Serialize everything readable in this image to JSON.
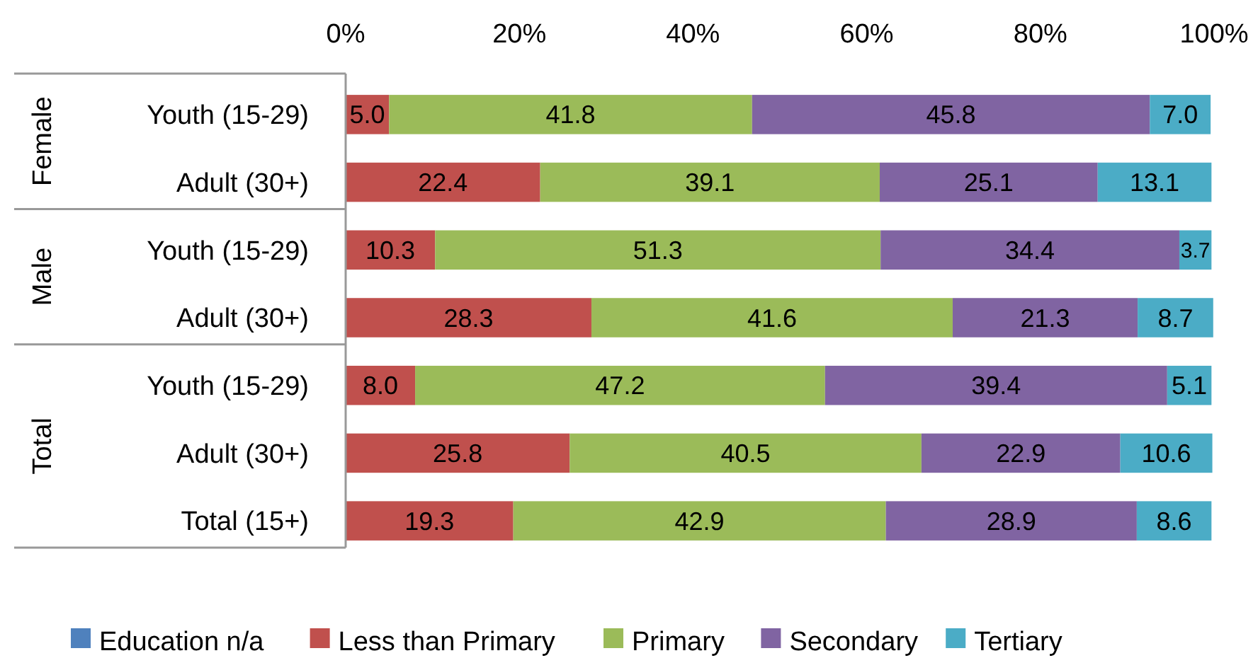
{
  "chart_data": {
    "type": "bar",
    "orientation": "horizontal",
    "stacked": true,
    "categories": [
      "Youth (15-29)",
      "Adult (30+)",
      "Youth (15-29)",
      "Adult (30+)",
      "Youth (15-29)",
      "Adult (30+)",
      "Total (15+)"
    ],
    "series": [
      {
        "name": "Education n/a",
        "color": "#4f81bd",
        "values": [
          null,
          null,
          null,
          null,
          null,
          null,
          null
        ]
      },
      {
        "name": "Less than Primary",
        "color": "#c0504d",
        "values": [
          5.0,
          22.4,
          10.3,
          28.3,
          8.0,
          25.8,
          19.3
        ],
        "value_labels": [
          "5.0",
          "22.4",
          "10.3",
          "28.3",
          "8.0",
          "25.8",
          "19.3"
        ]
      },
      {
        "name": "Primary",
        "color": "#9bbb59",
        "values": [
          41.8,
          39.1,
          51.3,
          41.6,
          47.2,
          40.5,
          42.9
        ],
        "value_labels": [
          "41.8",
          "39.1",
          "51.3",
          "41.6",
          "47.2",
          "40.5",
          "42.9"
        ]
      },
      {
        "name": "Secondary",
        "color": "#8064a2",
        "values": [
          45.8,
          25.1,
          34.4,
          21.3,
          39.4,
          22.9,
          28.9
        ],
        "value_labels": [
          "45.8",
          "25.1",
          "34.4",
          "21.3",
          "39.4",
          "22.9",
          "28.9"
        ]
      },
      {
        "name": "Tertiary",
        "color": "#4bacc6",
        "values": [
          7.0,
          13.1,
          3.7,
          8.7,
          5.1,
          10.6,
          8.6
        ],
        "value_labels": [
          "7.0",
          "13.1",
          "3.7",
          "8.7",
          "5.1",
          "10.6",
          "8.6"
        ]
      }
    ],
    "xlim": [
      0,
      100
    ],
    "xticks": [
      {
        "value": 0,
        "label": "0%"
      },
      {
        "value": 20,
        "label": "20%"
      },
      {
        "value": 40,
        "label": "40%"
      },
      {
        "value": 60,
        "label": "60%"
      },
      {
        "value": 80,
        "label": "80%"
      },
      {
        "value": 100,
        "label": "100%"
      }
    ],
    "annotations": [
      "Female",
      "Male",
      "Total"
    ],
    "legend": "bottom",
    "grid": false
  }
}
